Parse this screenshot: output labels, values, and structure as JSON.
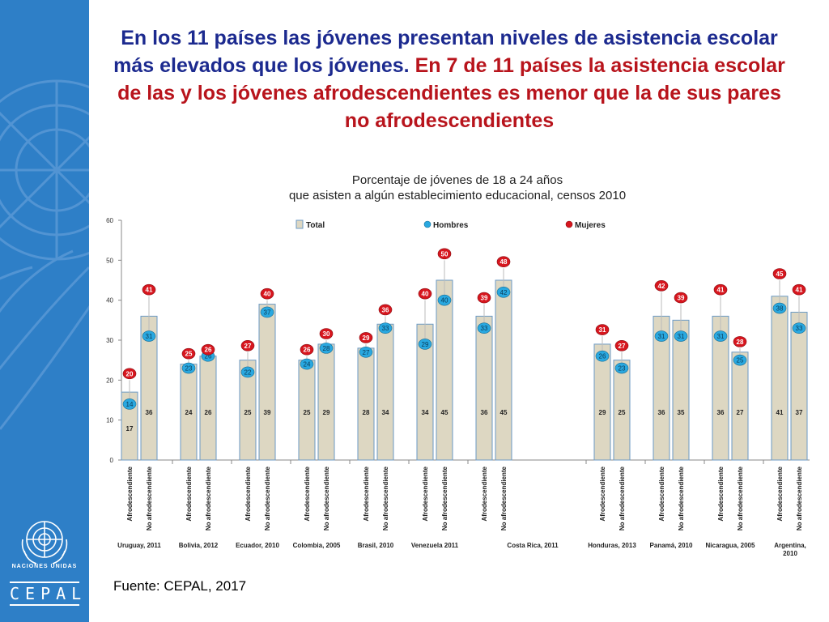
{
  "slide": {
    "title_part1": "En los 11 países las jóvenes presentan niveles de asistencia escolar más elevados que los jóvenes.",
    "title_part2": "En 7 de 11 países la asistencia escolar de las y los jóvenes afrodescendientes es menor que la de sus pares no afrodescendientes",
    "source": "Fuente: CEPAL, 2017"
  },
  "branding": {
    "org_name": "NACIONES UNIDAS",
    "org_short": "CEPAL",
    "sidebar_color": "#2e7fc7"
  },
  "chart_data": {
    "type": "bar",
    "title_line1": "Porcentaje de jóvenes de 18 a 24 años",
    "title_line2": "que asisten a algún establecimiento educacional,  censos 2010",
    "ylim": [
      0,
      60
    ],
    "yticks": [
      0,
      10,
      20,
      30,
      40,
      50,
      60
    ],
    "legend": {
      "total": "Total",
      "hombres": "Hombres",
      "mujeres": "Mujeres"
    },
    "colors": {
      "bar": "#ddd7c2",
      "bar_border": "#6b9ac4",
      "hombres": "#29a8e0",
      "mujeres": "#d7161e"
    },
    "groups": [
      {
        "country": "Uruguay, 2011",
        "bars": [
          {
            "label": "Afrodescendiente",
            "total": 17,
            "hombres": 14,
            "mujeres": 20
          },
          {
            "label": "No afrodescendiente",
            "total": 36,
            "hombres": 31,
            "mujeres": 41
          }
        ]
      },
      {
        "country": "Bolivia, 2012",
        "bars": [
          {
            "label": "Afrodescendiente",
            "total": 24,
            "hombres": 23,
            "mujeres": 25
          },
          {
            "label": "No afrodescendiente",
            "total": 26,
            "hombres": 26,
            "mujeres": 26
          }
        ]
      },
      {
        "country": "Ecuador, 2010",
        "bars": [
          {
            "label": "Afrodescendiente",
            "total": 25,
            "hombres": 22,
            "mujeres": 27
          },
          {
            "label": "No afrodescendiente",
            "total": 39,
            "hombres": 37,
            "mujeres": 40
          }
        ]
      },
      {
        "country": "Colombia, 2005",
        "bars": [
          {
            "label": "Afrodescendiente",
            "total": 25,
            "hombres": 24,
            "mujeres": 26
          },
          {
            "label": "No afrodescendiente",
            "total": 29,
            "hombres": 28,
            "mujeres": 30
          }
        ]
      },
      {
        "country": "Brasil, 2010",
        "bars": [
          {
            "label": "Afrodescendiente",
            "total": 28,
            "hombres": 27,
            "mujeres": 29
          },
          {
            "label": "No afrodescendiente",
            "total": 34,
            "hombres": 33,
            "mujeres": 36
          }
        ]
      },
      {
        "country": "Venezuela 2011",
        "bars": [
          {
            "label": "Afrodescendiente",
            "total": 34,
            "hombres": 29,
            "mujeres": 40
          },
          {
            "label": "No afrodescendiente",
            "total": 45,
            "hombres": 40,
            "mujeres": 50
          }
        ]
      },
      {
        "country": "Costa Rica, 2011",
        "bars": [
          {
            "label": "Afrodescendiente",
            "total": 36,
            "hombres": 33,
            "mujeres": 39
          },
          {
            "label": "No afrodescendiente",
            "total": 45,
            "hombres": 42,
            "mujeres": 48
          }
        ]
      },
      {
        "country": "Honduras, 2013",
        "bars": [
          {
            "label": "Afrodescendiente",
            "total": 29,
            "hombres": 26,
            "mujeres": 31
          },
          {
            "label": "No afrodescendiente",
            "total": 25,
            "hombres": 23,
            "mujeres": 27
          }
        ]
      },
      {
        "country": "Panamá, 2010",
        "bars": [
          {
            "label": "Afrodescendiente",
            "total": 36,
            "hombres": 31,
            "mujeres": 42
          },
          {
            "label": "No afrodescendiente",
            "total": 35,
            "hombres": 31,
            "mujeres": 39
          }
        ]
      },
      {
        "country": "Nicaragua, 2005",
        "bars": [
          {
            "label": "Afrodescendiente",
            "total": 36,
            "hombres": 31,
            "mujeres": 41
          },
          {
            "label": "No afrodescendiente",
            "total": 27,
            "hombres": 25,
            "mujeres": 28
          }
        ]
      },
      {
        "country": "Argentina, 2010",
        "bars": [
          {
            "label": "Afrodescendiente",
            "total": 41,
            "hombres": 38,
            "mujeres": 45
          },
          {
            "label": "No afrodescendiente",
            "total": 37,
            "hombres": 33,
            "mujeres": 41
          }
        ]
      }
    ]
  }
}
